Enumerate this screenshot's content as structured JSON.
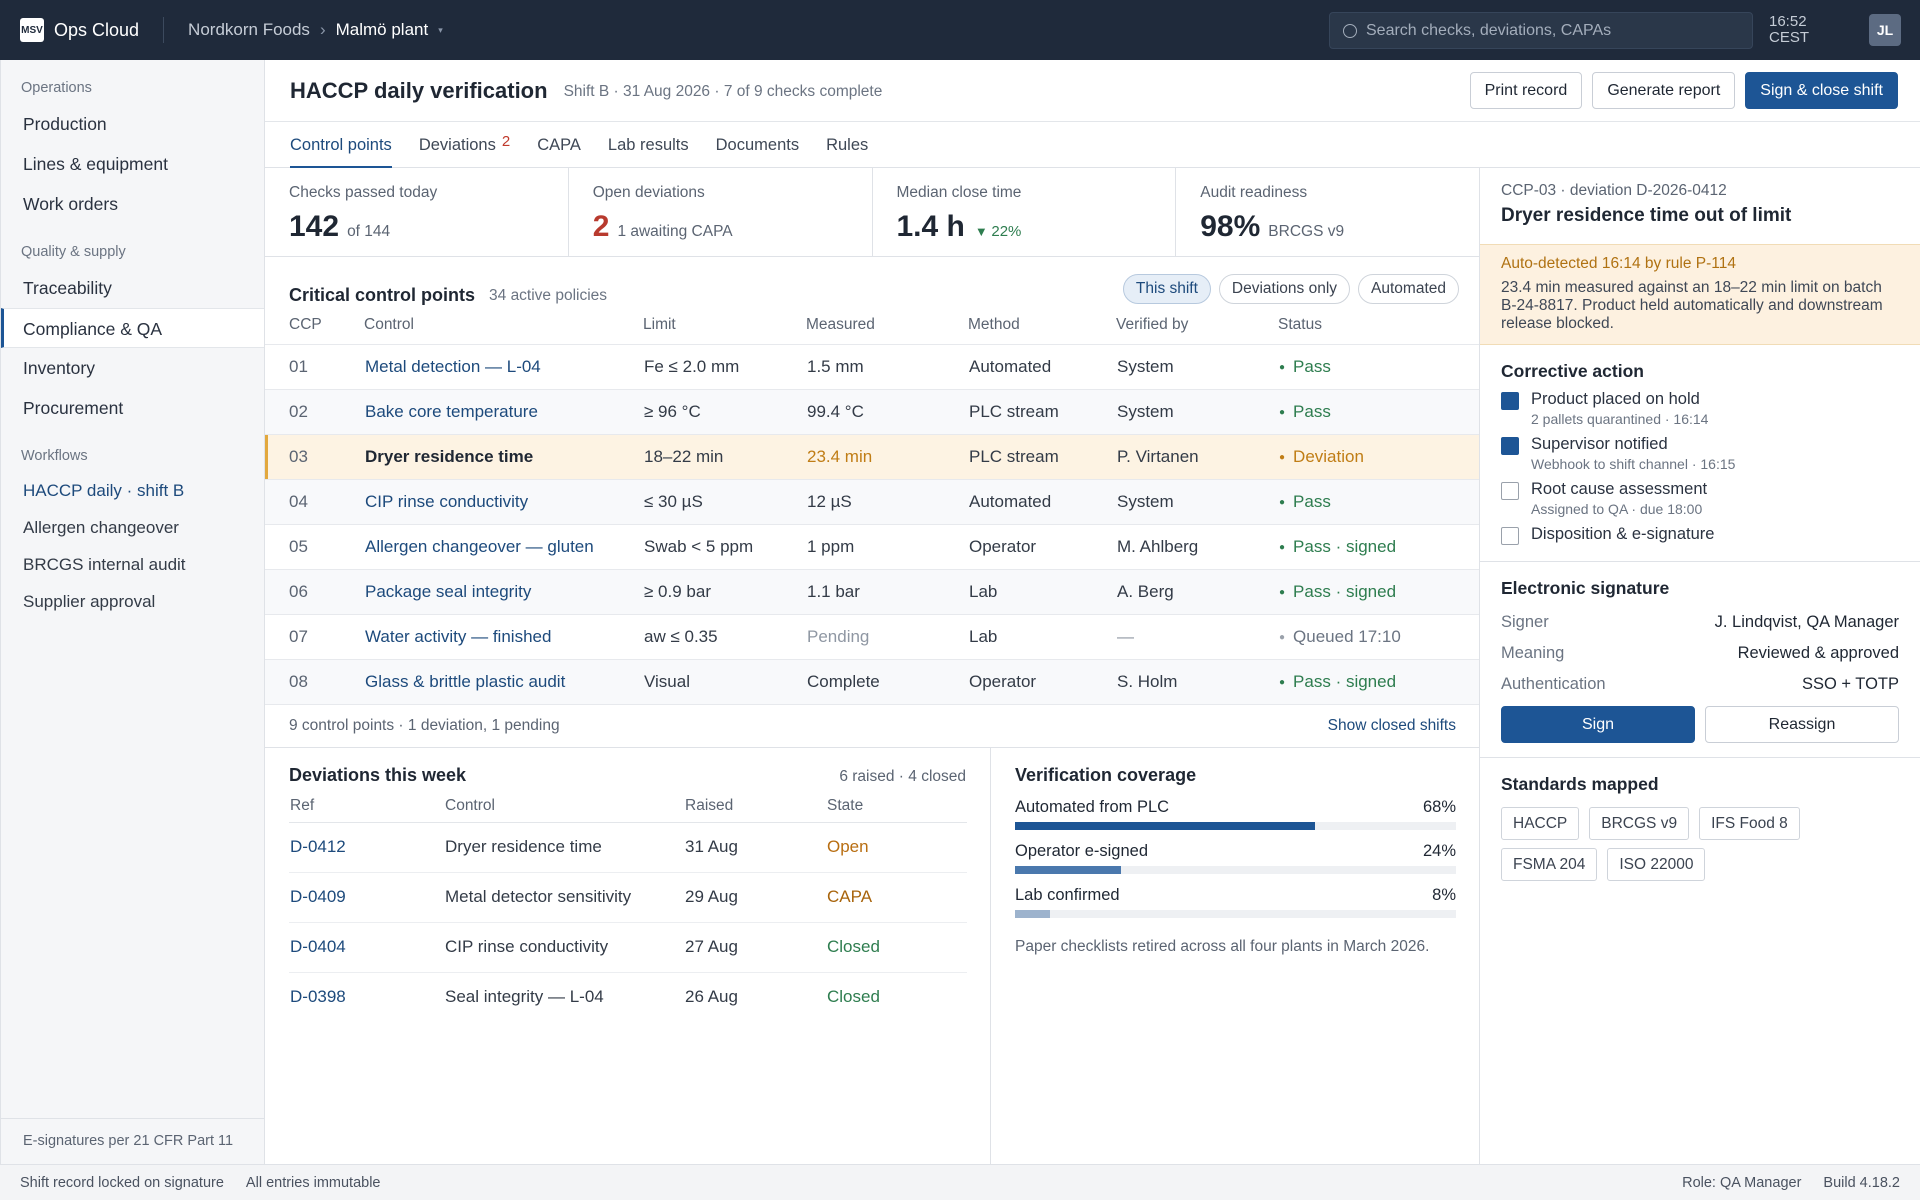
{
  "topbar": {
    "logo": "MSV",
    "app": "Ops Cloud",
    "breadcrumb": [
      "Nordkorn Foods",
      "Malmö plant"
    ],
    "search_placeholder": "Search checks, deviations, CAPAs",
    "time": "16:52",
    "timezone": "CEST",
    "avatar": "JL"
  },
  "sidebar": {
    "sections": [
      {
        "title": "Operations",
        "items": [
          {
            "label": "Production"
          },
          {
            "label": "Lines & equipment"
          },
          {
            "label": "Work orders"
          }
        ]
      },
      {
        "title": "Quality & supply",
        "items": [
          {
            "label": "Traceability"
          },
          {
            "label": "Compliance & QA",
            "active": true
          },
          {
            "label": "Inventory"
          },
          {
            "label": "Procurement"
          }
        ]
      },
      {
        "title": "Workflows",
        "items": [
          {
            "label": "HACCP daily · shift B",
            "link": true
          },
          {
            "label": "Allergen changeover"
          },
          {
            "label": "BRCGS internal audit"
          },
          {
            "label": "Supplier approval"
          }
        ]
      }
    ],
    "footer": "E-signatures per 21 CFR Part 11"
  },
  "header": {
    "title": "HACCP daily verification",
    "meta": "Shift B · 31 Aug 2026 · 7 of 9 checks complete",
    "actions": [
      "Print record",
      "Generate report",
      "Sign & close shift"
    ]
  },
  "tabs": [
    {
      "label": "Control points",
      "active": true
    },
    {
      "label": "Deviations",
      "badge": "2"
    },
    {
      "label": "CAPA"
    },
    {
      "label": "Lab results"
    },
    {
      "label": "Documents"
    },
    {
      "label": "Rules"
    }
  ],
  "kpis": [
    {
      "label": "Checks passed today",
      "value": "142",
      "sub": "of 144"
    },
    {
      "label": "Open deviations",
      "value": "2",
      "sub": "1 awaiting CAPA",
      "tone": "bad"
    },
    {
      "label": "Median close time",
      "value": "1.4 h",
      "delta": "22%"
    },
    {
      "label": "Audit readiness",
      "value": "98%",
      "sub": "BRCGS v9"
    }
  ],
  "ccp": {
    "title": "Critical control points",
    "subtitle": "34 active policies",
    "filters": [
      {
        "label": "This shift",
        "active": true
      },
      {
        "label": "Deviations only"
      },
      {
        "label": "Automated"
      }
    ],
    "columns": [
      "CCP",
      "Control",
      "Limit",
      "Measured",
      "Method",
      "Verified by",
      "Status"
    ],
    "rows": [
      {
        "cells": [
          "01",
          "Metal detection — L-04",
          "Fe ≤ 2.0 mm",
          "1.5 mm",
          "Automated",
          "System",
          "Pass"
        ],
        "tone": "pass"
      },
      {
        "cells": [
          "02",
          "Bake core temperature",
          "≥ 96 °C",
          "99.4 °C",
          "PLC stream",
          "System",
          "Pass"
        ],
        "tone": "pass"
      },
      {
        "cells": [
          "03",
          "Dryer residence time",
          "18–22 min",
          "23.4 min",
          "PLC stream",
          "P. Virtanen",
          "Deviation"
        ],
        "tone": "deviation"
      },
      {
        "cells": [
          "04",
          "CIP rinse conductivity",
          "≤ 30 µS",
          "12 µS",
          "Automated",
          "System",
          "Pass"
        ],
        "tone": "pass"
      },
      {
        "cells": [
          "05",
          "Allergen changeover — gluten",
          "Swab < 5 ppm",
          "1 ppm",
          "Operator",
          "M. Ahlberg",
          "Pass · signed"
        ],
        "tone": "pass"
      },
      {
        "cells": [
          "06",
          "Package seal integrity",
          "≥ 0.9 bar",
          "1.1 bar",
          "Lab",
          "A. Berg",
          "Pass · signed"
        ],
        "tone": "pass"
      },
      {
        "cells": [
          "07",
          "Water activity — finished",
          "aw ≤ 0.35",
          "Pending",
          "Lab",
          "—",
          "Queued 17:10"
        ],
        "tone": "pending"
      },
      {
        "cells": [
          "08",
          "Glass & brittle plastic audit",
          "Visual",
          "Complete",
          "Operator",
          "S. Holm",
          "Pass · signed"
        ],
        "tone": "pass"
      }
    ],
    "footer": "9 control points · 1 deviation, 1 pending",
    "link": "Show closed shifts"
  },
  "deviations": {
    "title": "Deviations this week",
    "summary": "6 raised · 4 closed",
    "columns": [
      "Ref",
      "Control",
      "Raised",
      "State"
    ],
    "rows": [
      {
        "cells": [
          "D-0412",
          "Dryer residence time",
          "31 Aug",
          "Open"
        ],
        "tone": "open"
      },
      {
        "cells": [
          "D-0409",
          "Metal detector sensitivity",
          "29 Aug",
          "CAPA"
        ],
        "tone": "capa"
      },
      {
        "cells": [
          "D-0404",
          "CIP rinse conductivity",
          "27 Aug",
          "Closed"
        ],
        "tone": "closed"
      },
      {
        "cells": [
          "D-0398",
          "Seal integrity — L-04",
          "26 Aug",
          "Closed"
        ],
        "tone": "closed"
      }
    ]
  },
  "coverage": {
    "title": "Verification coverage",
    "items": [
      {
        "label": "Automated from PLC",
        "value": 68,
        "value_label": "68%",
        "color": "#1d5595"
      },
      {
        "label": "Operator e-signed",
        "value": 24,
        "value_label": "24%",
        "color": "#4a78ad"
      },
      {
        "label": "Lab confirmed",
        "value": 8,
        "value_label": "8%",
        "color": "#9db3cd"
      }
    ],
    "note": "Paper checklists retired across all four plants in March 2026."
  },
  "panel": {
    "context": "CCP-03 · deviation D-2026-0412",
    "title": "Dryer residence time out of limit",
    "alert": {
      "title": "Auto-detected 16:14 by rule P-114",
      "text": "23.4 min measured against an 18–22 min limit on batch B-24-8817. Product held automatically and downstream release blocked."
    },
    "corrective": {
      "title": "Corrective action",
      "items": [
        {
          "label": "Product placed on hold",
          "detail": "2 pallets quarantined · 16:14",
          "done": true
        },
        {
          "label": "Supervisor notified",
          "detail": "Webhook to shift channel · 16:15",
          "done": true
        },
        {
          "label": "Root cause assessment",
          "detail": "Assigned to QA · due 18:00",
          "done": false
        },
        {
          "label": "Disposition & e-signature",
          "done": false
        }
      ]
    },
    "signature": {
      "title": "Electronic signature",
      "fields": [
        [
          "Signer",
          "J. Lindqvist, QA Manager"
        ],
        [
          "Meaning",
          "Reviewed & approved"
        ],
        [
          "Authentication",
          "SSO + TOTP"
        ]
      ],
      "actions": [
        "Sign",
        "Reassign"
      ]
    },
    "standards": {
      "title": "Standards mapped",
      "tags": [
        "HACCP",
        "BRCGS v9",
        "IFS Food 8",
        "FSMA 204",
        "ISO 22000"
      ]
    }
  },
  "statusbar": {
    "left": [
      "Shift record locked on signature",
      "All entries immutable"
    ],
    "right": [
      "Role: QA Manager",
      "Build 4.18.2"
    ]
  }
}
